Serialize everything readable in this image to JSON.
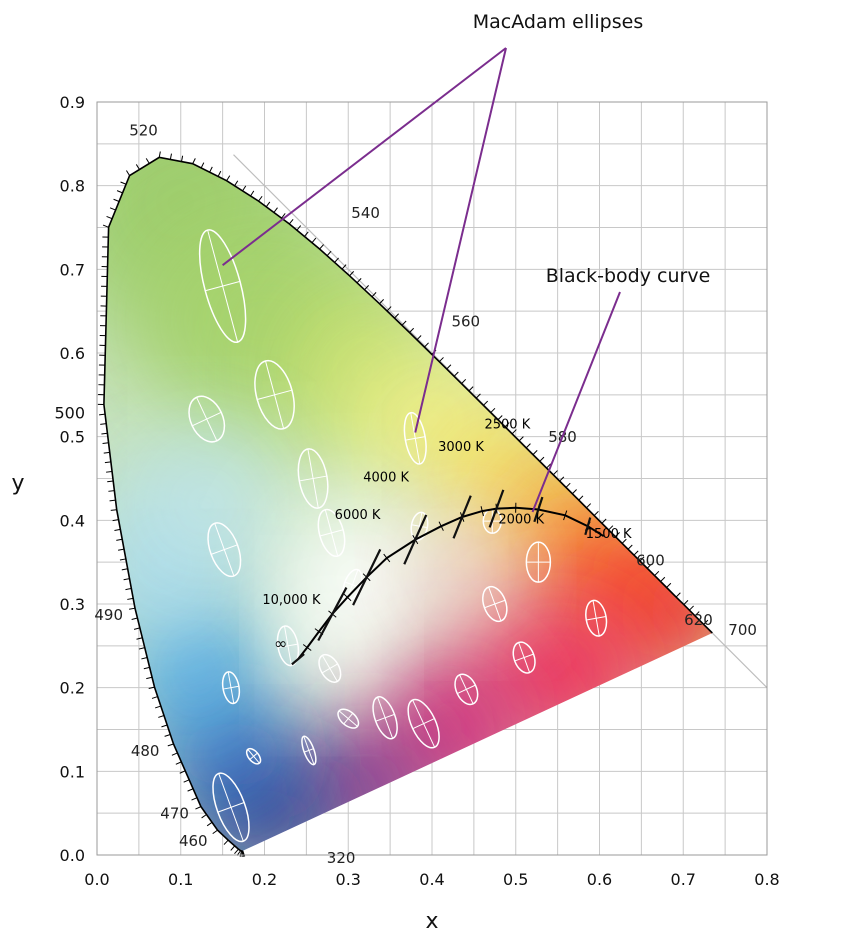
{
  "chart_data": {
    "type": "scatter",
    "title": "",
    "xlabel": "x",
    "ylabel": "y",
    "xlim": [
      0.0,
      0.8
    ],
    "ylim": [
      0.0,
      0.9
    ],
    "grid": true,
    "x_ticks": [
      "0.0",
      "0.1",
      "0.2",
      "0.3",
      "0.4",
      "0.5",
      "0.6",
      "0.7",
      "0.8"
    ],
    "y_ticks": [
      {
        "value": 0.0,
        "label": "0.0"
      },
      {
        "value": 0.1,
        "label": "0.1"
      },
      {
        "value": 0.2,
        "label": "0.2"
      },
      {
        "value": 0.3,
        "label": "0.3"
      },
      {
        "value": 0.4,
        "label": "0.4"
      },
      {
        "value": 0.5,
        "label": "0.5"
      },
      {
        "value": 0.6,
        "label": "0.6"
      },
      {
        "value": 0.7,
        "label": "0.7"
      },
      {
        "value": 0.8,
        "label": "0.8"
      },
      {
        "value": 0.9,
        "label": "0.9"
      }
    ],
    "spectral_locus": [
      [
        0.1741,
        0.005
      ],
      [
        0.1738,
        0.0049
      ],
      [
        0.1733,
        0.0048
      ],
      [
        0.1726,
        0.0048
      ],
      [
        0.1714,
        0.0051
      ],
      [
        0.1689,
        0.0069
      ],
      [
        0.1644,
        0.0109
      ],
      [
        0.1566,
        0.0177
      ],
      [
        0.144,
        0.0297
      ],
      [
        0.1241,
        0.0578
      ],
      [
        0.0913,
        0.1327
      ],
      [
        0.0687,
        0.2007
      ],
      [
        0.0454,
        0.295
      ],
      [
        0.0235,
        0.4127
      ],
      [
        0.0082,
        0.5384
      ],
      [
        0.0139,
        0.7502
      ],
      [
        0.0389,
        0.812
      ],
      [
        0.0743,
        0.8338
      ],
      [
        0.1142,
        0.8262
      ],
      [
        0.1547,
        0.8059
      ],
      [
        0.1929,
        0.7816
      ],
      [
        0.2296,
        0.7543
      ],
      [
        0.2658,
        0.7243
      ],
      [
        0.3016,
        0.6923
      ],
      [
        0.3373,
        0.6589
      ],
      [
        0.3731,
        0.6245
      ],
      [
        0.4087,
        0.5896
      ],
      [
        0.4441,
        0.5547
      ],
      [
        0.4788,
        0.5202
      ],
      [
        0.5125,
        0.4866
      ],
      [
        0.5448,
        0.4544
      ],
      [
        0.5752,
        0.4242
      ],
      [
        0.6029,
        0.3965
      ],
      [
        0.627,
        0.3725
      ],
      [
        0.6482,
        0.3514
      ],
      [
        0.6658,
        0.334
      ],
      [
        0.6801,
        0.3197
      ],
      [
        0.6915,
        0.3083
      ],
      [
        0.7006,
        0.2993
      ],
      [
        0.714,
        0.2859
      ],
      [
        0.7347,
        0.2653
      ]
    ],
    "wavelength_labels": [
      {
        "label": "320",
        "x": 0.1741,
        "y": 0.005
      },
      {
        "label": "460",
        "x": 0.144,
        "y": 0.0297
      },
      {
        "label": "470",
        "x": 0.1241,
        "y": 0.0578
      },
      {
        "label": "480",
        "x": 0.0913,
        "y": 0.1327
      },
      {
        "label": "490",
        "x": 0.0454,
        "y": 0.295
      },
      {
        "label": "500",
        "x": 0.0082,
        "y": 0.5384
      },
      {
        "label": "520",
        "x": 0.0743,
        "y": 0.8338
      },
      {
        "label": "540",
        "x": 0.2296,
        "y": 0.7543
      },
      {
        "label": "560",
        "x": 0.3731,
        "y": 0.6245
      },
      {
        "label": "580",
        "x": 0.5125,
        "y": 0.4866
      },
      {
        "label": "600",
        "x": 0.627,
        "y": 0.3725
      },
      {
        "label": "620",
        "x": 0.6915,
        "y": 0.3083
      },
      {
        "label": "700",
        "x": 0.7347,
        "y": 0.2653
      }
    ],
    "blackbody_curve": [
      [
        0.24,
        0.234
      ],
      [
        0.251,
        0.248
      ],
      [
        0.265,
        0.267
      ],
      [
        0.281,
        0.288
      ],
      [
        0.299,
        0.308
      ],
      [
        0.322,
        0.332
      ],
      [
        0.346,
        0.355
      ],
      [
        0.38,
        0.377
      ],
      [
        0.411,
        0.393
      ],
      [
        0.436,
        0.404
      ],
      [
        0.46,
        0.411
      ],
      [
        0.477,
        0.414
      ],
      [
        0.5,
        0.415
      ],
      [
        0.527,
        0.413
      ],
      [
        0.559,
        0.406
      ],
      [
        0.586,
        0.393
      ],
      [
        0.605,
        0.381
      ]
    ],
    "isotherms": [
      {
        "label": "∞",
        "x": 0.24,
        "y": 0.234
      },
      {
        "label": "10,000 K",
        "x": 0.281,
        "y": 0.288
      },
      {
        "label": "6000 K",
        "x": 0.322,
        "y": 0.332
      },
      {
        "label": "4000 K",
        "x": 0.38,
        "y": 0.377
      },
      {
        "label": "3000 K",
        "x": 0.436,
        "y": 0.404
      },
      {
        "label": "2500 K",
        "x": 0.477,
        "y": 0.414
      },
      {
        "label": "2000 K",
        "x": 0.527,
        "y": 0.413
      },
      {
        "label": "1500 K",
        "x": 0.586,
        "y": 0.393
      }
    ],
    "macadam_ellipses": [
      {
        "x": 0.16,
        "y": 0.057
      },
      {
        "x": 0.187,
        "y": 0.118
      },
      {
        "x": 0.253,
        "y": 0.125
      },
      {
        "x": 0.15,
        "y": 0.68
      },
      {
        "x": 0.131,
        "y": 0.521
      },
      {
        "x": 0.212,
        "y": 0.55
      },
      {
        "x": 0.258,
        "y": 0.45
      },
      {
        "x": 0.152,
        "y": 0.365
      },
      {
        "x": 0.28,
        "y": 0.385
      },
      {
        "x": 0.38,
        "y": 0.498
      },
      {
        "x": 0.16,
        "y": 0.2
      },
      {
        "x": 0.228,
        "y": 0.25
      },
      {
        "x": 0.305,
        "y": 0.323
      },
      {
        "x": 0.385,
        "y": 0.393
      },
      {
        "x": 0.472,
        "y": 0.399
      },
      {
        "x": 0.527,
        "y": 0.35
      },
      {
        "x": 0.475,
        "y": 0.3
      },
      {
        "x": 0.51,
        "y": 0.236
      },
      {
        "x": 0.596,
        "y": 0.283
      },
      {
        "x": 0.344,
        "y": 0.164
      },
      {
        "x": 0.39,
        "y": 0.157
      },
      {
        "x": 0.441,
        "y": 0.198
      },
      {
        "x": 0.278,
        "y": 0.223
      },
      {
        "x": 0.3,
        "y": 0.163
      }
    ],
    "annotations": [
      {
        "text": "MacAdam ellipses"
      },
      {
        "text": "Black-body curve"
      }
    ]
  },
  "colors": {
    "callout_line": "#7b2d8e",
    "grid": "#c8c8c8",
    "curve": "#000000",
    "ellipse": "#ffffff"
  }
}
